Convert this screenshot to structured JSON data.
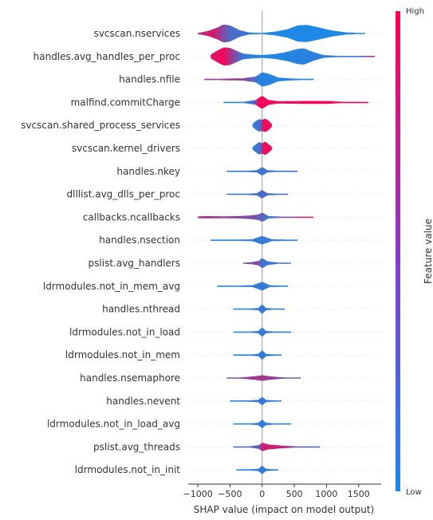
{
  "chart_data": {
    "type": "violin",
    "xlabel": "SHAP value (impact on model output)",
    "xlim": [
      -1150,
      1850
    ],
    "xticks": [
      -1000,
      -500,
      0,
      500,
      1000,
      1500
    ],
    "colorbar": {
      "label": "Feature value",
      "high": "High",
      "low": "Low",
      "high_color": "#ff0052",
      "low_color": "#1e88e5"
    },
    "features": [
      {
        "name": "svcscan.nservices",
        "min": -1000,
        "max": 1600,
        "density": [
          [
            -1000,
            0.05
          ],
          [
            -850,
            0.25
          ],
          [
            -700,
            0.6
          ],
          [
            -600,
            0.95
          ],
          [
            -500,
            0.85
          ],
          [
            -350,
            0.35
          ],
          [
            -200,
            0.1
          ],
          [
            0,
            0.06
          ],
          [
            200,
            0.2
          ],
          [
            400,
            0.45
          ],
          [
            550,
            0.85
          ],
          [
            700,
            0.9
          ],
          [
            900,
            0.6
          ],
          [
            1100,
            0.3
          ],
          [
            1300,
            0.12
          ],
          [
            1500,
            0.06
          ],
          [
            1600,
            0.02
          ]
        ],
        "colors": [
          [
            -1000,
            0.7
          ],
          [
            -750,
            0.8
          ],
          [
            -500,
            0.2
          ],
          [
            -300,
            0.15
          ],
          [
            0,
            0.0
          ],
          [
            1600,
            0.0
          ]
        ]
      },
      {
        "name": "handles.avg_handles_per_proc",
        "min": -800,
        "max": 1750,
        "density": [
          [
            -800,
            0.2
          ],
          [
            -700,
            0.6
          ],
          [
            -600,
            0.95
          ],
          [
            -500,
            0.9
          ],
          [
            -400,
            0.6
          ],
          [
            -300,
            0.3
          ],
          [
            -150,
            0.2
          ],
          [
            0,
            0.15
          ],
          [
            200,
            0.25
          ],
          [
            400,
            0.5
          ],
          [
            550,
            0.8
          ],
          [
            650,
            0.85
          ],
          [
            800,
            0.45
          ],
          [
            950,
            0.15
          ],
          [
            1200,
            0.05
          ],
          [
            1500,
            0.04
          ],
          [
            1750,
            0.02
          ]
        ],
        "colors": [
          [
            -800,
            0.8
          ],
          [
            -600,
            0.95
          ],
          [
            -450,
            0.5
          ],
          [
            -300,
            0.1
          ],
          [
            0,
            0.0
          ],
          [
            1450,
            0.1
          ],
          [
            1750,
            0.7
          ]
        ]
      },
      {
        "name": "handles.nfile",
        "min": -900,
        "max": 800,
        "density": [
          [
            -900,
            0.03
          ],
          [
            -600,
            0.08
          ],
          [
            -300,
            0.12
          ],
          [
            -100,
            0.3
          ],
          [
            0,
            0.75
          ],
          [
            100,
            0.6
          ],
          [
            250,
            0.2
          ],
          [
            450,
            0.1
          ],
          [
            800,
            0.03
          ]
        ],
        "colors": [
          [
            -900,
            0.6
          ],
          [
            -400,
            0.55
          ],
          [
            -200,
            0.4
          ],
          [
            -50,
            0.05
          ],
          [
            800,
            0.0
          ]
        ]
      },
      {
        "name": "malfind.commitCharge",
        "min": -600,
        "max": 1650,
        "density": [
          [
            -600,
            0.03
          ],
          [
            -300,
            0.05
          ],
          [
            -100,
            0.25
          ],
          [
            0,
            0.7
          ],
          [
            100,
            0.25
          ],
          [
            250,
            0.12
          ],
          [
            500,
            0.14
          ],
          [
            800,
            0.16
          ],
          [
            1050,
            0.14
          ],
          [
            1200,
            0.08
          ],
          [
            1400,
            0.03
          ],
          [
            1650,
            0.01
          ]
        ],
        "colors": [
          [
            -600,
            0.0
          ],
          [
            -150,
            0.1
          ],
          [
            -50,
            0.95
          ],
          [
            100,
            0.95
          ],
          [
            300,
            0.9
          ],
          [
            1650,
            1.0
          ]
        ]
      },
      {
        "name": "svcscan.shared_process_services",
        "min": -150,
        "max": 150,
        "density": [
          [
            -150,
            0.15
          ],
          [
            -100,
            0.45
          ],
          [
            -50,
            0.65
          ],
          [
            0,
            0.6
          ],
          [
            50,
            0.7
          ],
          [
            100,
            0.5
          ],
          [
            150,
            0.15
          ]
        ],
        "colors": [
          [
            -150,
            0.05
          ],
          [
            -30,
            0.2
          ],
          [
            20,
            0.9
          ],
          [
            150,
            0.95
          ]
        ]
      },
      {
        "name": "svcscan.kernel_drivers",
        "min": -150,
        "max": 150,
        "density": [
          [
            -150,
            0.15
          ],
          [
            -100,
            0.4
          ],
          [
            -50,
            0.65
          ],
          [
            0,
            0.55
          ],
          [
            50,
            0.7
          ],
          [
            100,
            0.45
          ],
          [
            150,
            0.15
          ]
        ],
        "colors": [
          [
            -150,
            0.05
          ],
          [
            -30,
            0.2
          ],
          [
            20,
            0.9
          ],
          [
            150,
            0.95
          ]
        ]
      },
      {
        "name": "handles.nkey",
        "min": -550,
        "max": 550,
        "density": [
          [
            -550,
            0.03
          ],
          [
            -250,
            0.06
          ],
          [
            -80,
            0.12
          ],
          [
            0,
            0.45
          ],
          [
            80,
            0.12
          ],
          [
            250,
            0.06
          ],
          [
            550,
            0.03
          ]
        ],
        "colors": [
          [
            -550,
            0.05
          ],
          [
            0,
            0.15
          ],
          [
            550,
            0.1
          ]
        ]
      },
      {
        "name": "dlllist.avg_dlls_per_proc",
        "min": -550,
        "max": 400,
        "density": [
          [
            -550,
            0.03
          ],
          [
            -250,
            0.06
          ],
          [
            -80,
            0.12
          ],
          [
            0,
            0.45
          ],
          [
            80,
            0.12
          ],
          [
            250,
            0.06
          ],
          [
            400,
            0.03
          ]
        ],
        "colors": [
          [
            -550,
            0.1
          ],
          [
            0,
            0.2
          ],
          [
            400,
            0.15
          ]
        ]
      },
      {
        "name": "callbacks.ncallbacks",
        "min": -1000,
        "max": 800,
        "density": [
          [
            -1000,
            0.1
          ],
          [
            -850,
            0.12
          ],
          [
            -600,
            0.1
          ],
          [
            -400,
            0.12
          ],
          [
            -200,
            0.18
          ],
          [
            -50,
            0.3
          ],
          [
            0,
            0.5
          ],
          [
            100,
            0.12
          ],
          [
            400,
            0.04
          ],
          [
            800,
            0.03
          ]
        ],
        "colors": [
          [
            -1000,
            0.65
          ],
          [
            -600,
            0.55
          ],
          [
            -300,
            0.45
          ],
          [
            -50,
            0.35
          ],
          [
            100,
            0.1
          ],
          [
            800,
            0.9
          ]
        ]
      },
      {
        "name": "handles.nsection",
        "min": -800,
        "max": 550,
        "density": [
          [
            -800,
            0.03
          ],
          [
            -400,
            0.06
          ],
          [
            -150,
            0.1
          ],
          [
            0,
            0.45
          ],
          [
            150,
            0.1
          ],
          [
            400,
            0.06
          ],
          [
            550,
            0.03
          ]
        ],
        "colors": [
          [
            -800,
            0.0
          ],
          [
            0,
            0.1
          ],
          [
            550,
            0.05
          ]
        ]
      },
      {
        "name": "pslist.avg_handlers",
        "min": -300,
        "max": 450,
        "density": [
          [
            -300,
            0.05
          ],
          [
            -150,
            0.12
          ],
          [
            -50,
            0.25
          ],
          [
            0,
            0.55
          ],
          [
            80,
            0.2
          ],
          [
            250,
            0.06
          ],
          [
            450,
            0.03
          ]
        ],
        "colors": [
          [
            -300,
            0.3
          ],
          [
            -80,
            0.5
          ],
          [
            0,
            0.15
          ],
          [
            450,
            0.1
          ]
        ]
      },
      {
        "name": "ldrmodules.not_in_mem_avg",
        "min": -700,
        "max": 400,
        "density": [
          [
            -700,
            0.03
          ],
          [
            -400,
            0.06
          ],
          [
            -150,
            0.1
          ],
          [
            0,
            0.45
          ],
          [
            120,
            0.1
          ],
          [
            400,
            0.03
          ]
        ],
        "colors": [
          [
            -700,
            0.0
          ],
          [
            0,
            0.1
          ],
          [
            400,
            0.05
          ]
        ]
      },
      {
        "name": "handles.nthread",
        "min": -450,
        "max": 350,
        "density": [
          [
            -450,
            0.03
          ],
          [
            -200,
            0.06
          ],
          [
            -60,
            0.12
          ],
          [
            0,
            0.5
          ],
          [
            60,
            0.12
          ],
          [
            200,
            0.05
          ],
          [
            350,
            0.03
          ]
        ],
        "colors": [
          [
            -450,
            0.0
          ],
          [
            0,
            0.1
          ],
          [
            350,
            0.05
          ]
        ]
      },
      {
        "name": "ldrmodules.not_in_load",
        "min": -450,
        "max": 450,
        "density": [
          [
            -450,
            0.03
          ],
          [
            -200,
            0.06
          ],
          [
            -60,
            0.12
          ],
          [
            0,
            0.5
          ],
          [
            60,
            0.12
          ],
          [
            200,
            0.06
          ],
          [
            450,
            0.03
          ]
        ],
        "colors": [
          [
            -450,
            0.0
          ],
          [
            0,
            0.1
          ],
          [
            450,
            0.05
          ]
        ]
      },
      {
        "name": "ldrmodules.not_in_mem",
        "min": -450,
        "max": 300,
        "density": [
          [
            -450,
            0.03
          ],
          [
            -200,
            0.06
          ],
          [
            -60,
            0.12
          ],
          [
            0,
            0.5
          ],
          [
            60,
            0.12
          ],
          [
            300,
            0.03
          ]
        ],
        "colors": [
          [
            -450,
            0.0
          ],
          [
            0,
            0.1
          ],
          [
            300,
            0.05
          ]
        ]
      },
      {
        "name": "handles.nsemaphore",
        "min": -550,
        "max": 600,
        "density": [
          [
            -550,
            0.03
          ],
          [
            -300,
            0.08
          ],
          [
            -100,
            0.2
          ],
          [
            0,
            0.3
          ],
          [
            100,
            0.2
          ],
          [
            300,
            0.08
          ],
          [
            600,
            0.03
          ]
        ],
        "colors": [
          [
            -550,
            0.3
          ],
          [
            -200,
            0.55
          ],
          [
            0,
            0.6
          ],
          [
            200,
            0.5
          ],
          [
            600,
            0.2
          ]
        ]
      },
      {
        "name": "handles.nevent",
        "min": -500,
        "max": 300,
        "density": [
          [
            -500,
            0.03
          ],
          [
            -250,
            0.06
          ],
          [
            -60,
            0.12
          ],
          [
            0,
            0.45
          ],
          [
            60,
            0.12
          ],
          [
            300,
            0.03
          ]
        ],
        "colors": [
          [
            -500,
            0.0
          ],
          [
            0,
            0.1
          ],
          [
            300,
            0.05
          ]
        ]
      },
      {
        "name": "ldrmodules.not_in_load_avg",
        "min": -450,
        "max": 450,
        "density": [
          [
            -450,
            0.03
          ],
          [
            -200,
            0.06
          ],
          [
            -60,
            0.12
          ],
          [
            0,
            0.45
          ],
          [
            60,
            0.12
          ],
          [
            200,
            0.06
          ],
          [
            450,
            0.03
          ]
        ],
        "colors": [
          [
            -450,
            0.0
          ],
          [
            0,
            0.1
          ],
          [
            450,
            0.05
          ]
        ]
      },
      {
        "name": "pslist.avg_threads",
        "min": -450,
        "max": 900,
        "density": [
          [
            -450,
            0.03
          ],
          [
            -200,
            0.06
          ],
          [
            -50,
            0.2
          ],
          [
            0,
            0.45
          ],
          [
            100,
            0.25
          ],
          [
            300,
            0.15
          ],
          [
            550,
            0.06
          ],
          [
            900,
            0.02
          ]
        ],
        "colors": [
          [
            -450,
            0.1
          ],
          [
            -50,
            0.3
          ],
          [
            0,
            0.75
          ],
          [
            200,
            0.8
          ],
          [
            450,
            0.5
          ],
          [
            900,
            0.1
          ]
        ]
      },
      {
        "name": "ldrmodules.not_in_init",
        "min": -400,
        "max": 250,
        "density": [
          [
            -400,
            0.03
          ],
          [
            -200,
            0.06
          ],
          [
            -60,
            0.12
          ],
          [
            0,
            0.45
          ],
          [
            60,
            0.12
          ],
          [
            250,
            0.03
          ]
        ],
        "colors": [
          [
            -400,
            0.0
          ],
          [
            0,
            0.1
          ],
          [
            250,
            0.05
          ]
        ]
      }
    ]
  }
}
